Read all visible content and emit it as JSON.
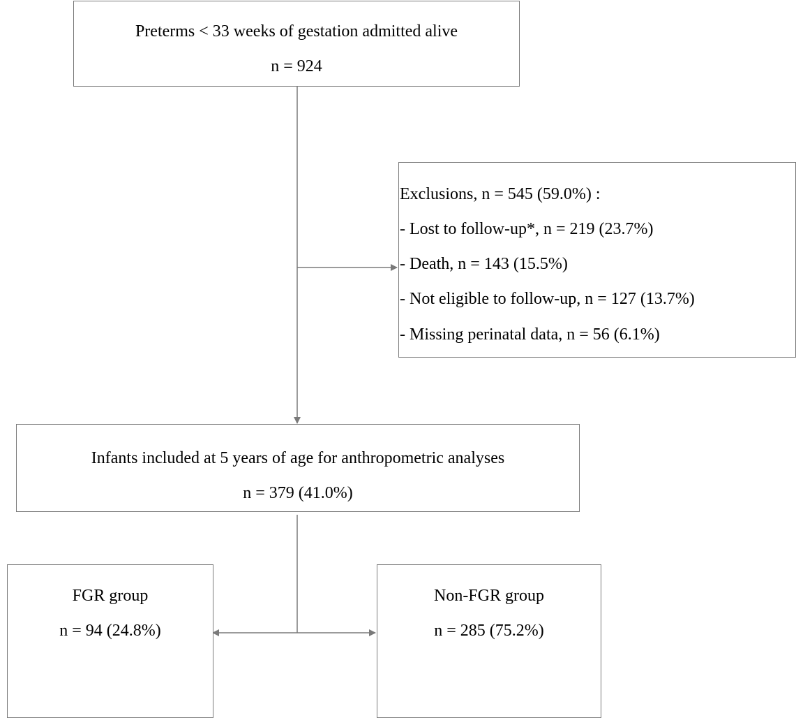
{
  "nodes": {
    "start": {
      "title": "Preterms < 33 weeks of gestation admitted alive",
      "count": "n = 924"
    },
    "exclusions": {
      "title": "Exclusions, n = 545 (59.0%) :",
      "items": [
        "- Lost to follow-up*, n = 219 (23.7%)",
        "- Death, n = 143 (15.5%)",
        "- Not eligible to follow-up, n = 127 (13.7%)",
        "- Missing perinatal data, n = 56 (6.1%)"
      ]
    },
    "included": {
      "title": "Infants included at 5 years of age for anthropometric analyses",
      "count": "n = 379 (41.0%)"
    },
    "fgr": {
      "title": "FGR group",
      "count": "n = 94 (24.8%)"
    },
    "non_fgr": {
      "title": "Non-FGR group",
      "count": "n = 285 (75.2%)"
    }
  },
  "colors": {
    "line": "#7a7a7a",
    "text": "#000000",
    "background": "#ffffff"
  }
}
